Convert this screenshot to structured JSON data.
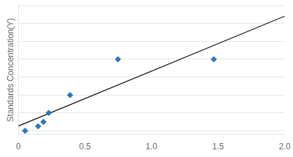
{
  "chart_data": {
    "type": "scatter",
    "ylabel": "Standards Concentration(Y)",
    "series": [
      {
        "type": "line",
        "x": [
          0.0,
          2.0
        ],
        "values": [
          5.3437,
          128.1492
        ],
        "color": "#000000",
        "line_style": "solid"
      },
      {
        "type": "scatter",
        "x": [
          0.05,
          0.148,
          0.188,
          0.228,
          0.388,
          0.748,
          1.468
        ],
        "values": [
          0,
          5,
          10,
          20,
          40,
          80,
          80
        ],
        "color": "#2E75B6",
        "marker": "diamond"
      }
    ],
    "xlim": [
      0,
      2.0
    ],
    "xticks": [
      0,
      0.5,
      {
        "value": 1.0,
        "label": "1.0"
      },
      1.5,
      {
        "value": 2.0,
        "label": "2.0"
      }
    ],
    "ylim": [
      -4,
      140
    ],
    "yticks": [
      0,
      20,
      40,
      60,
      80,
      100,
      120,
      140
    ],
    "grid": true,
    "tick_labels": "x"
  }
}
